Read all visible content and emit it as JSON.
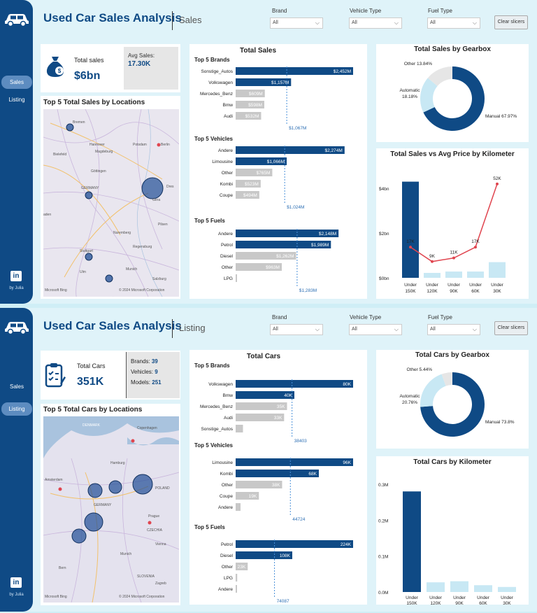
{
  "colors": {
    "navy": "#0f4a85",
    "gray": "#c8c8c8",
    "light": "#c8e8f4",
    "red": "#e0454f",
    "ref": "#4a90d9"
  },
  "icons": {
    "logo": "car-icon",
    "sales_kpi": "money-bag-icon",
    "cars_kpi": "clipboard-check-icon",
    "linkedin": "linkedin-icon"
  },
  "shared": {
    "dashboard_title": "Used Car Sales Analysis",
    "nav_sales": "Sales",
    "nav_listing": "Listing",
    "linkedin": "in",
    "by": "by Julia",
    "filters": {
      "brand_label": "Brand",
      "vehicle_label": "Vehicle Type",
      "fuel_label": "Fuel Type",
      "brand_value": "All",
      "vehicle_value": "All",
      "fuel_value": "All"
    },
    "clear_label": "Clear slicers",
    "map_attrib_left": "Microsoft Bing",
    "map_attrib_right": "© 2024 Microsoft Corporation"
  },
  "sales_page": {
    "page_label": "Sales",
    "kpi_label": "Total sales",
    "kpi_value": "$6bn",
    "avg_label": "Avg Sales:",
    "avg_value": "17.30K",
    "map_title": "Top 5 Total Sales by Locations",
    "map_labels": [
      "Bremen",
      "Hannover",
      "Potsdam",
      "Berlin",
      "Bielefeld",
      "Magdeburg",
      "Göttingen",
      "GERMANY",
      "Dres",
      "Gera",
      "aden",
      "Nuremberg",
      "Pilsen",
      "Regensburg",
      "Stuttgart",
      "Ulm",
      "Munich",
      "Salzburg"
    ],
    "bars_title": "Total Sales",
    "gearbox_title": "Total Sales by Gearbox",
    "combo_title": "Total Sales vs Avg Price by Kilometer"
  },
  "listing_page": {
    "page_label": "Listing",
    "kpi_label": "Total Cars",
    "kpi_value": "351K",
    "brands_label": "Brands:",
    "brands_value": "39",
    "vehicles_label": "Vehicles:",
    "vehicles_value": "9",
    "models_label": "Models:",
    "models_value": "251",
    "map_title": "Top 5 Total Cars by Locations",
    "map_labels": [
      "DENMARK",
      "Copenhagen",
      "Hamburg",
      "Amsterdam",
      "GERMANY",
      "CZECHIA",
      "POLAND",
      "Prague",
      "Vienna",
      "SLOVENIA",
      "Zagreb",
      "Munich",
      "Bern"
    ],
    "bars_title": "Total Cars",
    "gearbox_title": "Total Cars by Gearbox",
    "km_title": "Total Cars by Kilometer"
  },
  "chart_data": [
    {
      "type": "bar",
      "id": "sales-brands",
      "section": "Top 5 Brands",
      "categories": [
        "Sonstige_Autos",
        "Volkswagen",
        "Mercedes_Benz",
        "Bmw",
        "Audi"
      ],
      "values": [
        2452,
        1157,
        609,
        598,
        532
      ],
      "labels": [
        "$2,452M",
        "$1,157M",
        "$609M",
        "$598M",
        "$532M"
      ],
      "highlight": 2,
      "reference": 1067,
      "reference_label": "$1,067M",
      "max": 2452
    },
    {
      "type": "bar",
      "id": "sales-vehicles",
      "section": "Top 5 Vehicles",
      "categories": [
        "Andere",
        "Limousine",
        "Other",
        "Kombi",
        "Coupe"
      ],
      "values": [
        2274,
        1066,
        765,
        523,
        494
      ],
      "labels": [
        "$2,274M",
        "$1,066M",
        "$765M",
        "$523M",
        "$494M"
      ],
      "highlight": 2,
      "reference": 1024,
      "reference_label": "$1,024M",
      "max": 2452
    },
    {
      "type": "bar",
      "id": "sales-fuels",
      "section": "Top 5 Fuels",
      "categories": [
        "Andere",
        "Petrol",
        "Diesel",
        "Other",
        "LPG"
      ],
      "values": [
        2148,
        1989,
        1262,
        963,
        22
      ],
      "labels": [
        "$2,148M",
        "$1,989M",
        "$1,262M",
        "$963M",
        ""
      ],
      "highlight": 2,
      "reference": 1283,
      "reference_label": "$1,283M",
      "max": 2452
    },
    {
      "type": "pie",
      "id": "sales-gearbox",
      "categories": [
        "Manual",
        "Automatic",
        "Other"
      ],
      "values": [
        67.97,
        18.18,
        13.84
      ],
      "labels": [
        "Manual 67.97%",
        "Automatic 18.18%",
        "Other 13.84%"
      ]
    },
    {
      "type": "bar",
      "id": "sales-km",
      "categories": [
        "Under 150K",
        "Under 120K",
        "Under 90K",
        "Under 60K",
        "Under 30K"
      ],
      "series": [
        {
          "type": "bar",
          "values": [
            4.3,
            0.22,
            0.28,
            0.28,
            0.7
          ]
        },
        {
          "type": "line",
          "values": [
            17,
            9,
            11,
            17,
            52
          ],
          "labels": [
            "17K",
            "9K",
            "11K",
            "17K",
            "52K"
          ]
        }
      ],
      "yticks": [
        "$0bn",
        "$2bn",
        "$4bn"
      ],
      "ylim": [
        0,
        4.6
      ],
      "y2lim": [
        0,
        57
      ]
    },
    {
      "type": "bar",
      "id": "cars-brands",
      "section": "Top 5 Brands",
      "categories": [
        "Volkswagen",
        "Bmw",
        "Mercedes_Benz",
        "Audi",
        "Sonstige_Autos"
      ],
      "values": [
        80,
        40,
        35,
        33,
        5
      ],
      "labels": [
        "80K",
        "40K",
        "35K",
        "33K",
        ""
      ],
      "highlight": 2,
      "reference": 38403,
      "reference_label": "38403",
      "max": 80
    },
    {
      "type": "bar",
      "id": "cars-vehicles",
      "section": "Top 5 Vehicles",
      "categories": [
        "Limousine",
        "Kombi",
        "Other",
        "Coupe",
        "Andere"
      ],
      "values": [
        96,
        68,
        38,
        19,
        4
      ],
      "labels": [
        "96K",
        "68K",
        "38K",
        "19K",
        ""
      ],
      "highlight": 2,
      "reference": 44724,
      "reference_label": "44724",
      "max": 96
    },
    {
      "type": "bar",
      "id": "cars-fuels",
      "section": "Top 5 Fuels",
      "categories": [
        "Petrol",
        "Diesel",
        "Other",
        "LPG",
        "Andere"
      ],
      "values": [
        224,
        108,
        23,
        3,
        1
      ],
      "labels": [
        "224K",
        "108K",
        "23K",
        "",
        ""
      ],
      "highlight": 2,
      "reference": 74087,
      "reference_label": "74087",
      "max": 224
    },
    {
      "type": "pie",
      "id": "cars-gearbox",
      "categories": [
        "Manual",
        "Automatic",
        "Other"
      ],
      "values": [
        73.8,
        20.76,
        5.44
      ],
      "labels": [
        "Manual 73.8%",
        "Automatic 20.76%",
        "Other 5.44%"
      ]
    },
    {
      "type": "bar",
      "id": "cars-km",
      "categories": [
        "Under 150K",
        "Under 120K",
        "Under 90K",
        "Under 60K",
        "Under 30K"
      ],
      "values": [
        0.28,
        0.027,
        0.03,
        0.019,
        0.014
      ],
      "yticks": [
        "0.0M",
        "0.1M",
        "0.2M",
        "0.3M"
      ],
      "ylim": [
        0,
        0.3
      ]
    }
  ]
}
